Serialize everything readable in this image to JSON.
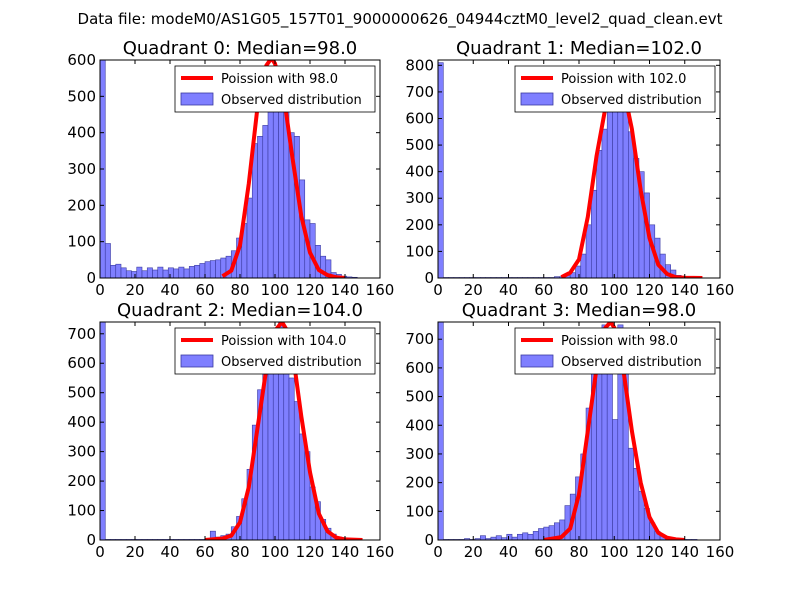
{
  "suptitle": "Data file: modeM0/AS1G05_157T01_9000000626_04944cztM0_level2_quad_clean.evt",
  "colors": {
    "bar_fill": "#7f7fff",
    "bar_edge": "#3a3aa0",
    "line": "#ff0000",
    "axis": "#000000"
  },
  "legend": {
    "line_prefix": "Poission with ",
    "bar_label": "Observed distribution"
  },
  "chart_data": [
    {
      "type": "bar",
      "title": "Quadrant 0: Median=98.0",
      "median": 98.0,
      "legend_line": "Poission with 98.0",
      "legend_bar": "Observed distribution",
      "xlim": [
        0,
        160
      ],
      "ylim": [
        0,
        600
      ],
      "xticks": [
        0,
        20,
        40,
        60,
        80,
        100,
        120,
        140,
        160
      ],
      "yticks": [
        0,
        100,
        200,
        300,
        400,
        500,
        600
      ],
      "bin_width": 3,
      "bins_start": [
        0,
        3,
        6,
        9,
        12,
        15,
        18,
        21,
        24,
        27,
        30,
        33,
        36,
        39,
        42,
        45,
        48,
        51,
        54,
        57,
        60,
        63,
        66,
        69,
        72,
        75,
        78,
        81,
        84,
        87,
        90,
        93,
        96,
        99,
        102,
        105,
        108,
        111,
        114,
        117,
        120,
        123,
        126,
        129,
        132,
        135,
        138,
        141,
        144
      ],
      "values": [
        600,
        95,
        35,
        38,
        28,
        20,
        18,
        30,
        20,
        28,
        22,
        30,
        22,
        28,
        25,
        30,
        25,
        32,
        35,
        40,
        45,
        48,
        50,
        55,
        60,
        75,
        110,
        150,
        220,
        370,
        390,
        420,
        500,
        530,
        540,
        520,
        400,
        390,
        270,
        160,
        150,
        90,
        60,
        50,
        15,
        10,
        5,
        3,
        2
      ],
      "curve_x": [
        70,
        75,
        80,
        85,
        90,
        95,
        98,
        100,
        105,
        110,
        115,
        120,
        125,
        130,
        135,
        140
      ],
      "curve_y": [
        5,
        20,
        90,
        260,
        470,
        585,
        605,
        590,
        500,
        330,
        170,
        70,
        22,
        8,
        2,
        0
      ]
    },
    {
      "type": "bar",
      "title": "Quadrant 1: Median=102.0",
      "median": 102.0,
      "legend_line": "Poission with 102.0",
      "legend_bar": "Observed distribution",
      "xlim": [
        0,
        160
      ],
      "ylim": [
        0,
        820
      ],
      "xticks": [
        0,
        20,
        40,
        60,
        80,
        100,
        120,
        140,
        160
      ],
      "yticks": [
        0,
        100,
        200,
        300,
        400,
        500,
        600,
        700,
        800
      ],
      "bin_width": 3,
      "bins_start": [
        0,
        3,
        6,
        9,
        12,
        15,
        18,
        21,
        24,
        27,
        30,
        33,
        36,
        39,
        42,
        45,
        48,
        51,
        54,
        57,
        60,
        63,
        66,
        69,
        72,
        75,
        78,
        81,
        84,
        87,
        90,
        93,
        96,
        99,
        102,
        105,
        108,
        111,
        114,
        117,
        120,
        123,
        126,
        129,
        132,
        135,
        138,
        141,
        144
      ],
      "values": [
        810,
        2,
        2,
        2,
        2,
        2,
        2,
        2,
        2,
        2,
        2,
        2,
        2,
        2,
        2,
        2,
        2,
        2,
        2,
        2,
        2,
        2,
        5,
        5,
        10,
        20,
        45,
        90,
        200,
        330,
        480,
        560,
        700,
        720,
        740,
        650,
        550,
        450,
        400,
        320,
        200,
        150,
        90,
        50,
        30,
        10,
        5,
        3,
        2
      ],
      "curve_x": [
        70,
        75,
        80,
        85,
        90,
        95,
        100,
        102,
        105,
        110,
        115,
        120,
        125,
        130,
        135,
        140,
        150
      ],
      "curve_y": [
        3,
        20,
        70,
        230,
        460,
        640,
        740,
        760,
        720,
        560,
        330,
        150,
        50,
        15,
        3,
        1,
        0
      ]
    },
    {
      "type": "bar",
      "title": "Quadrant 2: Median=104.0",
      "median": 104.0,
      "legend_line": "Poission with 104.0",
      "legend_bar": "Observed distribution",
      "xlim": [
        0,
        160
      ],
      "ylim": [
        0,
        740
      ],
      "xticks": [
        0,
        20,
        40,
        60,
        80,
        100,
        120,
        140,
        160
      ],
      "yticks": [
        0,
        100,
        200,
        300,
        400,
        500,
        600,
        700
      ],
      "bin_width": 3,
      "bins_start": [
        0,
        3,
        6,
        9,
        12,
        15,
        18,
        21,
        24,
        27,
        30,
        33,
        36,
        39,
        42,
        45,
        48,
        51,
        54,
        57,
        60,
        63,
        66,
        69,
        72,
        75,
        78,
        81,
        84,
        87,
        90,
        93,
        96,
        99,
        102,
        105,
        108,
        111,
        114,
        117,
        120,
        123,
        126,
        129,
        132,
        135,
        138,
        141,
        144
      ],
      "values": [
        740,
        2,
        2,
        2,
        2,
        2,
        2,
        2,
        2,
        2,
        2,
        2,
        2,
        2,
        2,
        2,
        2,
        2,
        2,
        2,
        5,
        30,
        10,
        15,
        20,
        45,
        80,
        140,
        240,
        390,
        510,
        600,
        700,
        720,
        740,
        630,
        550,
        470,
        360,
        300,
        180,
        130,
        70,
        40,
        20,
        10,
        5,
        3,
        2
      ],
      "curve_x": [
        60,
        70,
        75,
        80,
        85,
        90,
        95,
        100,
        104,
        108,
        110,
        115,
        120,
        125,
        130,
        135,
        140,
        150
      ],
      "curve_y": [
        0,
        5,
        15,
        60,
        180,
        380,
        580,
        710,
        740,
        700,
        640,
        420,
        230,
        90,
        30,
        8,
        2,
        0
      ]
    },
    {
      "type": "bar",
      "title": "Quadrant 3: Median=98.0",
      "median": 98.0,
      "legend_line": "Poission with 98.0",
      "legend_bar": "Observed distribution",
      "xlim": [
        0,
        160
      ],
      "ylim": [
        0,
        760
      ],
      "xticks": [
        0,
        20,
        40,
        60,
        80,
        100,
        120,
        140,
        160
      ],
      "yticks": [
        0,
        100,
        200,
        300,
        400,
        500,
        600,
        700
      ],
      "bin_width": 3,
      "bins_start": [
        0,
        3,
        6,
        9,
        12,
        15,
        18,
        21,
        24,
        27,
        30,
        33,
        36,
        39,
        42,
        45,
        48,
        51,
        54,
        57,
        60,
        63,
        66,
        69,
        72,
        75,
        78,
        81,
        84,
        87,
        90,
        93,
        96,
        99,
        102,
        105,
        108,
        111,
        114,
        117,
        120,
        123,
        126,
        129,
        132,
        135,
        138,
        141,
        144
      ],
      "values": [
        760,
        2,
        2,
        2,
        2,
        5,
        2,
        5,
        15,
        5,
        10,
        15,
        8,
        20,
        10,
        20,
        25,
        20,
        30,
        40,
        45,
        50,
        60,
        70,
        120,
        160,
        220,
        300,
        460,
        600,
        730,
        750,
        620,
        420,
        750,
        720,
        320,
        250,
        170,
        110,
        60,
        30,
        15,
        8,
        5,
        3,
        2,
        2,
        2
      ],
      "curve_x": [
        60,
        70,
        75,
        80,
        85,
        90,
        95,
        98,
        100,
        105,
        110,
        115,
        120,
        125,
        130,
        135,
        140
      ],
      "curve_y": [
        0,
        10,
        40,
        160,
        380,
        600,
        740,
        760,
        740,
        600,
        380,
        200,
        80,
        25,
        8,
        2,
        0
      ]
    }
  ]
}
